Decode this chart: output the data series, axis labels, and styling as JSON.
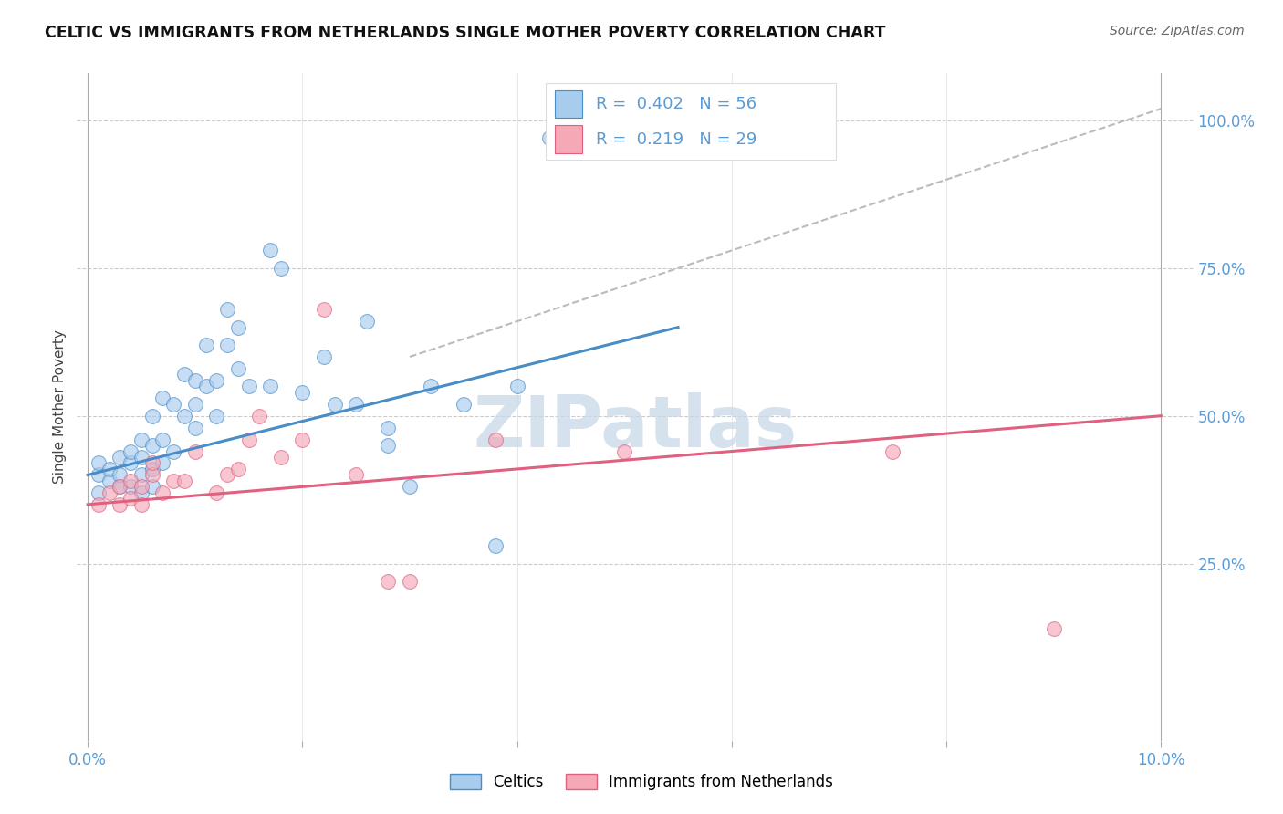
{
  "title": "CELTIC VS IMMIGRANTS FROM NETHERLANDS SINGLE MOTHER POVERTY CORRELATION CHART",
  "source": "Source: ZipAtlas.com",
  "ylabel": "Single Mother Poverty",
  "legend_label1": "Celtics",
  "legend_label2": "Immigrants from Netherlands",
  "R1": 0.402,
  "N1": 56,
  "R2": 0.219,
  "N2": 29,
  "color_blue": "#A8CCEE",
  "color_pink": "#F4A8B8",
  "color_blue_dark": "#4A8CC8",
  "color_pink_dark": "#E06080",
  "color_text_blue": "#5B9BD5",
  "watermark_color": "#C8D8E8",
  "blue_x": [
    0.001,
    0.001,
    0.001,
    0.002,
    0.002,
    0.003,
    0.003,
    0.003,
    0.004,
    0.004,
    0.004,
    0.005,
    0.005,
    0.005,
    0.005,
    0.006,
    0.006,
    0.006,
    0.006,
    0.007,
    0.007,
    0.007,
    0.008,
    0.008,
    0.009,
    0.009,
    0.01,
    0.01,
    0.01,
    0.011,
    0.011,
    0.012,
    0.012,
    0.013,
    0.013,
    0.014,
    0.014,
    0.015,
    0.017,
    0.018,
    0.02,
    0.022,
    0.023,
    0.025,
    0.026,
    0.028,
    0.03,
    0.032,
    0.035,
    0.04,
    0.043,
    0.046,
    0.05,
    0.017,
    0.028,
    0.038
  ],
  "blue_y": [
    0.37,
    0.4,
    0.42,
    0.39,
    0.41,
    0.38,
    0.4,
    0.43,
    0.38,
    0.42,
    0.44,
    0.37,
    0.4,
    0.43,
    0.46,
    0.38,
    0.41,
    0.45,
    0.5,
    0.42,
    0.46,
    0.53,
    0.44,
    0.52,
    0.5,
    0.57,
    0.48,
    0.52,
    0.56,
    0.55,
    0.62,
    0.5,
    0.56,
    0.62,
    0.68,
    0.58,
    0.65,
    0.55,
    0.55,
    0.75,
    0.54,
    0.6,
    0.52,
    0.52,
    0.66,
    0.48,
    0.38,
    0.55,
    0.52,
    0.55,
    0.97,
    0.97,
    0.97,
    0.78,
    0.45,
    0.28
  ],
  "pink_x": [
    0.001,
    0.002,
    0.003,
    0.003,
    0.004,
    0.004,
    0.005,
    0.005,
    0.006,
    0.006,
    0.007,
    0.008,
    0.009,
    0.01,
    0.012,
    0.013,
    0.014,
    0.015,
    0.016,
    0.018,
    0.02,
    0.022,
    0.025,
    0.028,
    0.03,
    0.038,
    0.05,
    0.075,
    0.09
  ],
  "pink_y": [
    0.35,
    0.37,
    0.35,
    0.38,
    0.36,
    0.39,
    0.35,
    0.38,
    0.4,
    0.42,
    0.37,
    0.39,
    0.39,
    0.44,
    0.37,
    0.4,
    0.41,
    0.46,
    0.5,
    0.43,
    0.46,
    0.68,
    0.4,
    0.22,
    0.22,
    0.46,
    0.44,
    0.44,
    0.14
  ],
  "blue_line_x": [
    0.0,
    0.055
  ],
  "blue_line_y": [
    0.4,
    0.65
  ],
  "pink_line_x": [
    0.0,
    0.1
  ],
  "pink_line_y": [
    0.35,
    0.5
  ],
  "dash_line_x": [
    0.03,
    0.1
  ],
  "dash_line_y": [
    0.6,
    1.02
  ],
  "dot_size": 130,
  "dot_alpha": 0.65,
  "xlim": [
    -0.001,
    0.103
  ],
  "ylim": [
    -0.05,
    1.08
  ]
}
